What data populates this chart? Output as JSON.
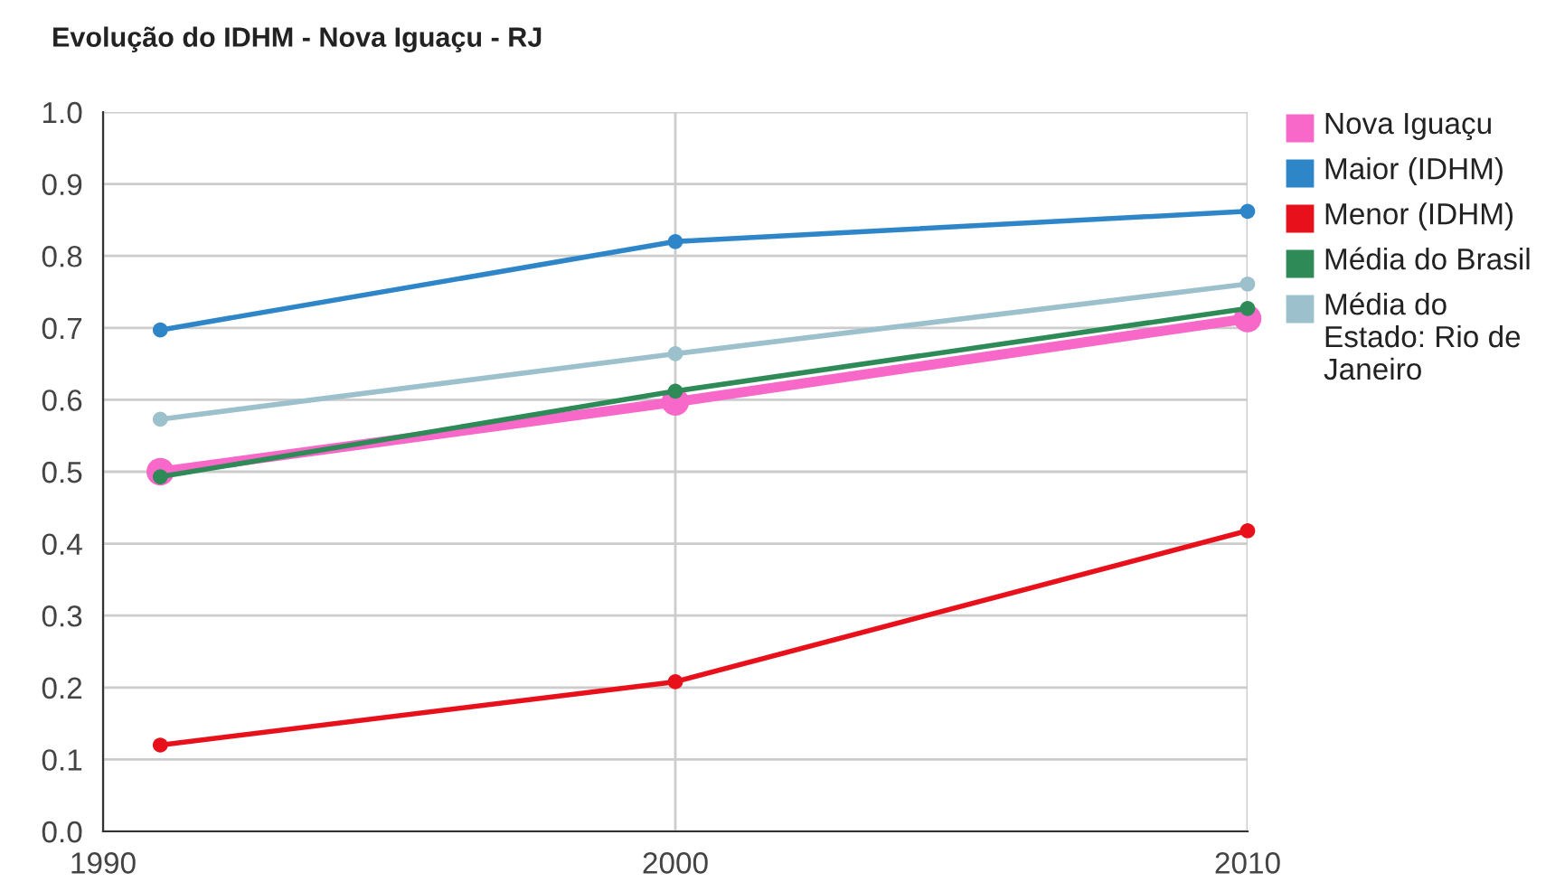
{
  "chart_data": {
    "type": "line",
    "title": "Evolução do IDHM - Nova Iguaçu - RJ",
    "x": [
      1991,
      2000,
      2010
    ],
    "series": [
      {
        "name": "Nova Iguaçu",
        "color": "#f768c8",
        "values": [
          0.5,
          0.597,
          0.713
        ]
      },
      {
        "name": "Maior (IDHM)",
        "color": "#2e86c8",
        "values": [
          0.697,
          0.82,
          0.862
        ]
      },
      {
        "name": "Menor (IDHM)",
        "color": "#e8101a",
        "values": [
          0.12,
          0.208,
          0.418
        ]
      },
      {
        "name": "Média do Brasil",
        "color": "#2e8b57",
        "values": [
          0.493,
          0.612,
          0.727
        ]
      },
      {
        "name": "Média do Estado: Rio de Janeiro",
        "color": "#9cc0cc",
        "values": [
          0.573,
          0.664,
          0.761
        ]
      }
    ],
    "xlim": [
      1990,
      2010
    ],
    "xticks": [
      1990,
      2000,
      2010
    ],
    "ylim": [
      0,
      1
    ],
    "yticks": [
      {
        "value": 0,
        "label": "0.0"
      },
      {
        "value": 0.1,
        "label": "0.1"
      },
      {
        "value": 0.2,
        "label": "0.2"
      },
      {
        "value": 0.3,
        "label": "0.3"
      },
      {
        "value": 0.4,
        "label": "0.4"
      },
      {
        "value": 0.5,
        "label": "0.5"
      },
      {
        "value": 0.6,
        "label": "0.6"
      },
      {
        "value": 0.7,
        "label": "0.7"
      },
      {
        "value": 0.8,
        "label": "0.8"
      },
      {
        "value": 0.9,
        "label": "0.9"
      },
      {
        "value": 1,
        "label": "1.0"
      }
    ],
    "grid": true,
    "legend": "right",
    "marker": "circle",
    "line_style": "solid"
  }
}
